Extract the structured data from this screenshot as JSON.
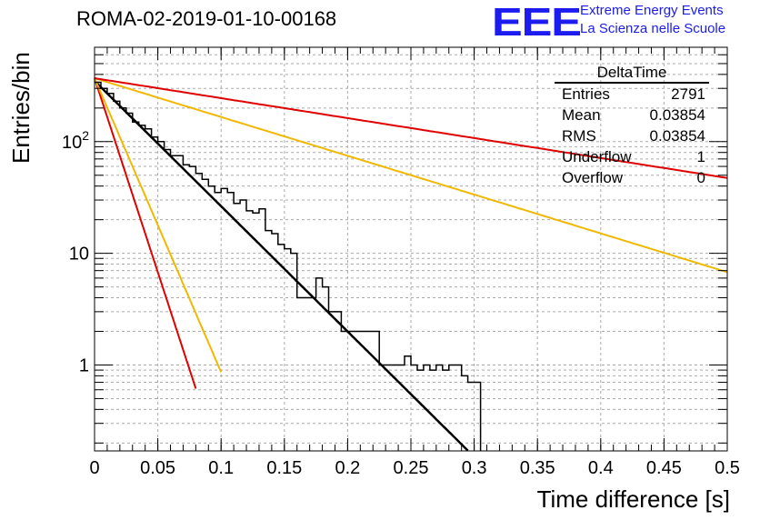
{
  "header": {
    "title": "ROMA-02-2019-01-10-00168",
    "logo_text": "EEE",
    "logo_line1": "Extreme Energy Events",
    "logo_line2": "La Scienza nelle Scuole"
  },
  "stats": {
    "title": "DeltaTime",
    "rows": [
      {
        "label": "Entries",
        "value": "2791"
      },
      {
        "label": "Mean",
        "value": "0.03854"
      },
      {
        "label": "RMS",
        "value": "0.03854"
      },
      {
        "label": "Underflow",
        "value": "1"
      },
      {
        "label": "Overflow",
        "value": "0"
      }
    ]
  },
  "chart_data": {
    "type": "line",
    "xlabel": "Time difference [s]",
    "ylabel": "Entries/bin",
    "xlim": [
      0,
      0.5
    ],
    "ylim": [
      0.17,
      700
    ],
    "yscale": "log",
    "grid": true,
    "x_ticks": [
      0,
      0.05,
      0.1,
      0.15,
      0.2,
      0.25,
      0.3,
      0.35,
      0.4,
      0.45,
      0.5
    ],
    "x_tick_labels": [
      "0",
      "0.05",
      "0.1",
      "0.15",
      "0.2",
      "0.25",
      "0.3",
      "0.35",
      "0.4",
      "0.45",
      "0.5"
    ],
    "y_ticks": [
      1,
      10,
      100
    ],
    "y_tick_labels": [
      "1",
      "10",
      "10^2"
    ],
    "histogram": {
      "bin_width": 0.005,
      "x_start": 0.0,
      "values": [
        340,
        300,
        270,
        230,
        200,
        180,
        150,
        140,
        130,
        110,
        100,
        85,
        75,
        75,
        62,
        60,
        52,
        46,
        40,
        35,
        38,
        35,
        28,
        30,
        24,
        23,
        25,
        16,
        15,
        12,
        11,
        10,
        4,
        4,
        4,
        6,
        5,
        3,
        3,
        2,
        2,
        2,
        2,
        2,
        2,
        1,
        1,
        1,
        1,
        1.2,
        1,
        0.9,
        1,
        0.9,
        1,
        0.9,
        1,
        1,
        0.8,
        0.7,
        0.7
      ],
      "color": "#000000"
    },
    "series": [
      {
        "type": "exp",
        "y0": 350,
        "tau": 0.0387,
        "x_end": 0.295,
        "color": "#000000"
      },
      {
        "type": "exp",
        "y0": 370,
        "tau": 0.0125,
        "x_end": 0.08,
        "color": "#e00000"
      },
      {
        "type": "exp",
        "y0": 370,
        "tau": 0.0165,
        "x_end": 0.1,
        "color": "#f0b800"
      },
      {
        "type": "exp",
        "y0": 370,
        "tau": 0.125,
        "x_end": 0.5,
        "color": "#f0b800"
      },
      {
        "type": "exp",
        "y0": 370,
        "tau": 0.243,
        "x_end": 0.5,
        "color": "#e00000"
      }
    ]
  }
}
